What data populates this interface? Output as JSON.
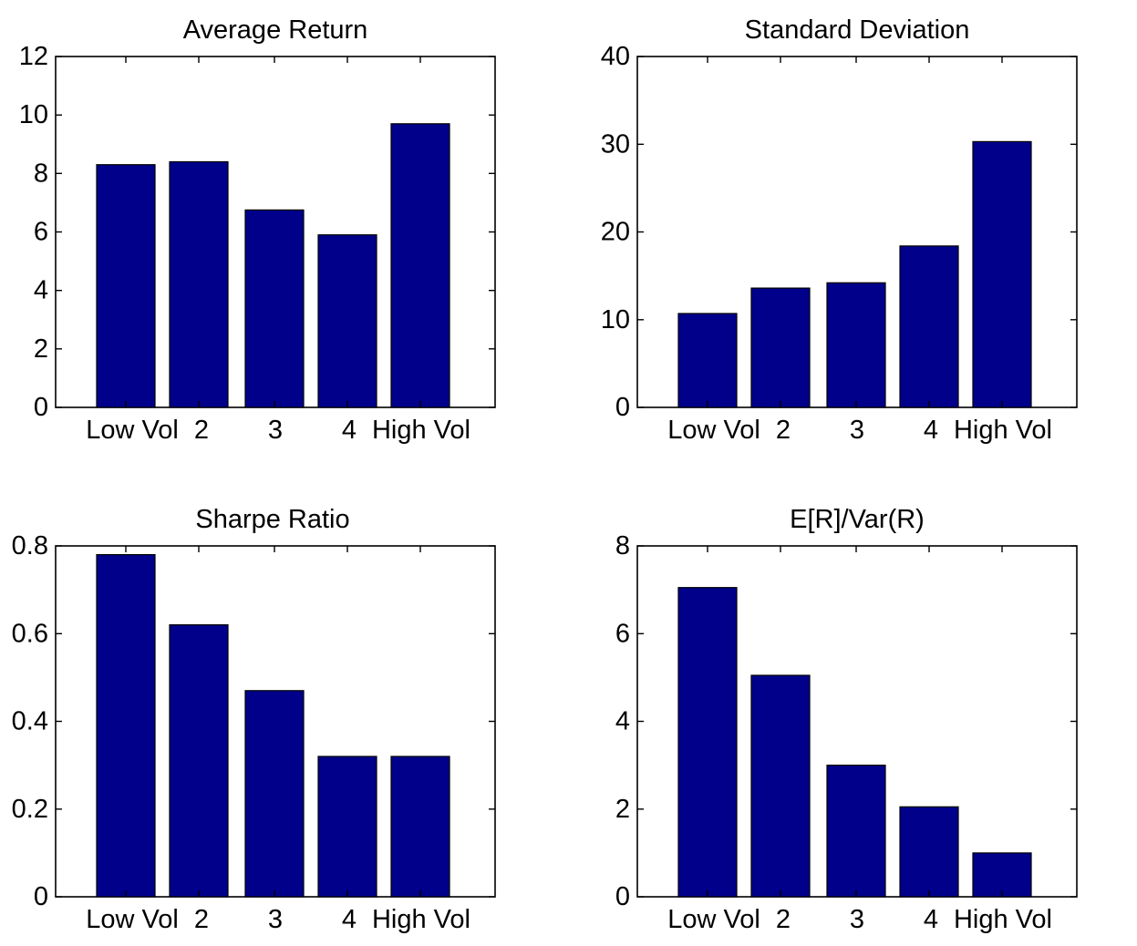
{
  "colors": {
    "bar_fill": "#00008b",
    "axis": "#000000",
    "background": "#ffffff"
  },
  "chart_data": [
    {
      "type": "bar",
      "title": "Average Return",
      "xlabel": "",
      "ylabel": "",
      "categories": [
        "Low Vol",
        "2",
        "3",
        "4",
        "High Vol"
      ],
      "values": [
        8.3,
        8.4,
        6.75,
        5.9,
        9.7
      ],
      "ylim": [
        0,
        12
      ],
      "yticks": [
        0,
        2,
        4,
        6,
        8,
        10,
        12
      ],
      "ytick_labels": [
        "0",
        "2",
        "4",
        "6",
        "8",
        "10",
        "12"
      ],
      "grid": false,
      "legend": "none"
    },
    {
      "type": "bar",
      "title": "Standard Deviation",
      "xlabel": "",
      "ylabel": "",
      "categories": [
        "Low Vol",
        "2",
        "3",
        "4",
        "High Vol"
      ],
      "values": [
        10.7,
        13.6,
        14.2,
        18.4,
        30.3
      ],
      "ylim": [
        0,
        40
      ],
      "yticks": [
        0,
        10,
        20,
        30,
        40
      ],
      "ytick_labels": [
        "0",
        "10",
        "20",
        "30",
        "40"
      ],
      "grid": false,
      "legend": "none"
    },
    {
      "type": "bar",
      "title": "Sharpe Ratio",
      "xlabel": "",
      "ylabel": "",
      "categories": [
        "Low Vol",
        "2",
        "3",
        "4",
        "High Vol"
      ],
      "values": [
        0.78,
        0.62,
        0.47,
        0.32,
        0.32
      ],
      "ylim": [
        0,
        0.8
      ],
      "yticks": [
        0,
        0.2,
        0.4,
        0.6,
        0.8
      ],
      "ytick_labels": [
        "0",
        "0.2",
        "0.4",
        "0.6",
        "0.8"
      ],
      "grid": false,
      "legend": "none"
    },
    {
      "type": "bar",
      "title": "E[R]/Var(R)",
      "xlabel": "",
      "ylabel": "",
      "categories": [
        "Low Vol",
        "2",
        "3",
        "4",
        "High Vol"
      ],
      "values": [
        7.05,
        5.05,
        3.0,
        2.05,
        1.0
      ],
      "ylim": [
        0,
        8
      ],
      "yticks": [
        0,
        2,
        4,
        6,
        8
      ],
      "ytick_labels": [
        "0",
        "2",
        "4",
        "6",
        "8"
      ],
      "grid": false,
      "legend": "none"
    }
  ]
}
